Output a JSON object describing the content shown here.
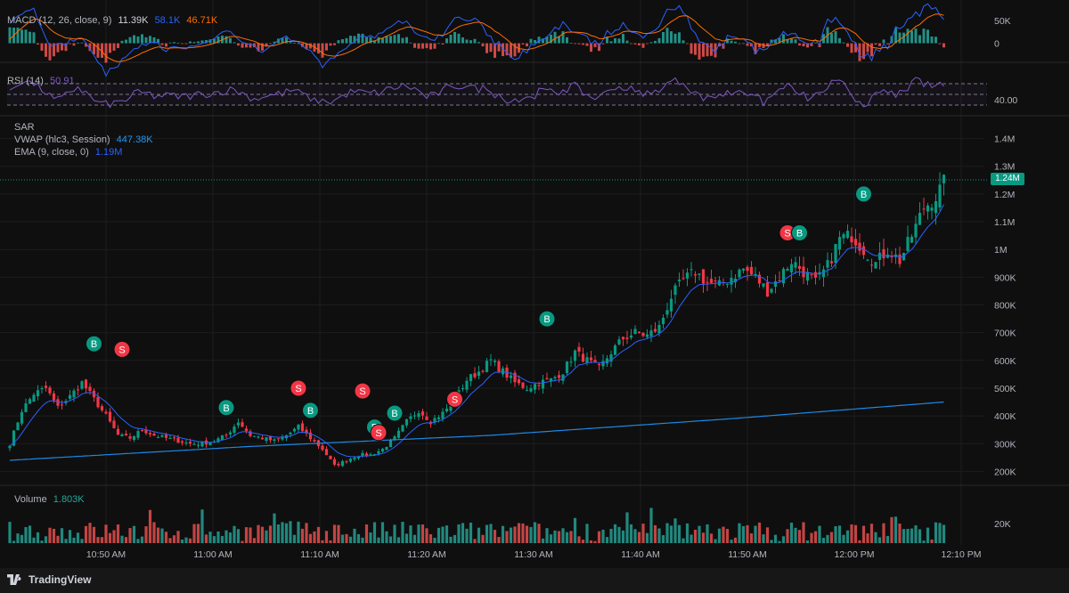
{
  "platform": {
    "brand": "TradingView",
    "logo_icon": "tradingview-logo-icon"
  },
  "colors": {
    "up": "#089981",
    "down": "#f23645",
    "ema": "#2962ff",
    "vwap": "#1e88e5",
    "rsi": "#7e57c2",
    "macd": "#2962ff",
    "signal": "#ff6d00",
    "background": "#0f0f0f"
  },
  "legends": {
    "macd": {
      "name": "MACD (12, 26, close, 9)",
      "hist": "11.39K",
      "macd": "58.1K",
      "signal": "46.71K"
    },
    "rsi": {
      "name": "RSI (14)",
      "value": "50.91"
    },
    "sar": {
      "name": "SAR"
    },
    "vwap": {
      "name": "VWAP (hlc3, Session)",
      "value": "447.38K"
    },
    "ema": {
      "name": "EMA (9, close, 0)",
      "value": "1.19M"
    },
    "volume": {
      "name": "Volume",
      "value": "1.803K"
    }
  },
  "last_price_label": "1.24M",
  "chart_data": [
    {
      "type": "candlestick",
      "pane": "price",
      "x_ticks": [
        "10:50 AM",
        "11:00 AM",
        "11:10 AM",
        "11:20 AM",
        "11:30 AM",
        "11:40 AM",
        "11:50 AM",
        "12:00 PM",
        "12:10 PM"
      ],
      "y_ticks": [
        "200K",
        "300K",
        "400K",
        "500K",
        "600K",
        "700K",
        "800K",
        "900K",
        "1M",
        "1.1M",
        "1.2M",
        "1.3M",
        "1.4M"
      ],
      "ylim": [
        150000,
        1450000
      ],
      "close_path": [
        [
          0,
          300000
        ],
        [
          3,
          420000
        ],
        [
          6,
          480000
        ],
        [
          9,
          500000
        ],
        [
          12,
          430000
        ],
        [
          15,
          470000
        ],
        [
          18,
          520000
        ],
        [
          21,
          460000
        ],
        [
          24,
          400000
        ],
        [
          27,
          330000
        ],
        [
          30,
          320000
        ],
        [
          33,
          350000
        ],
        [
          36,
          330000
        ],
        [
          39,
          320000
        ],
        [
          42,
          310000
        ],
        [
          45,
          300000
        ],
        [
          48,
          300000
        ],
        [
          51,
          310000
        ],
        [
          54,
          330000
        ],
        [
          57,
          380000
        ],
        [
          60,
          330000
        ],
        [
          63,
          320000
        ],
        [
          66,
          310000
        ],
        [
          69,
          330000
        ],
        [
          72,
          360000
        ],
        [
          75,
          320000
        ],
        [
          78,
          280000
        ],
        [
          81,
          220000
        ],
        [
          84,
          240000
        ],
        [
          87,
          260000
        ],
        [
          90,
          260000
        ],
        [
          93,
          280000
        ],
        [
          96,
          320000
        ],
        [
          99,
          380000
        ],
        [
          102,
          420000
        ],
        [
          105,
          380000
        ],
        [
          108,
          410000
        ],
        [
          111,
          460000
        ],
        [
          114,
          530000
        ],
        [
          117,
          560000
        ],
        [
          120,
          600000
        ],
        [
          123,
          560000
        ],
        [
          126,
          520000
        ],
        [
          129,
          500000
        ],
        [
          132,
          520000
        ],
        [
          135,
          530000
        ],
        [
          138,
          560000
        ],
        [
          141,
          630000
        ],
        [
          144,
          600000
        ],
        [
          147,
          570000
        ],
        [
          150,
          630000
        ],
        [
          153,
          680000
        ],
        [
          156,
          700000
        ],
        [
          159,
          690000
        ],
        [
          162,
          720000
        ],
        [
          165,
          830000
        ],
        [
          168,
          890000
        ],
        [
          171,
          920000
        ],
        [
          174,
          880000
        ],
        [
          177,
          870000
        ],
        [
          180,
          900000
        ],
        [
          183,
          930000
        ],
        [
          186,
          900000
        ],
        [
          189,
          850000
        ],
        [
          192,
          900000
        ],
        [
          195,
          960000
        ],
        [
          198,
          920000
        ],
        [
          201,
          880000
        ],
        [
          204,
          940000
        ],
        [
          207,
          1040000
        ],
        [
          210,
          1050000
        ],
        [
          213,
          1000000
        ],
        [
          216,
          950000
        ],
        [
          219,
          1000000
        ],
        [
          222,
          960000
        ],
        [
          225,
          1050000
        ],
        [
          228,
          1150000
        ],
        [
          231,
          1190000
        ],
        [
          233,
          1240000
        ]
      ],
      "vwap": [
        [
          0,
          240000
        ],
        [
          60,
          290000
        ],
        [
          120,
          330000
        ],
        [
          180,
          390000
        ],
        [
          233,
          450000
        ]
      ],
      "signals": [
        {
          "side": "B",
          "bar": 21,
          "price": 660000
        },
        {
          "side": "S",
          "bar": 28,
          "price": 640000
        },
        {
          "side": "B",
          "bar": 54,
          "price": 430000
        },
        {
          "side": "S",
          "bar": 72,
          "price": 500000
        },
        {
          "side": "B",
          "bar": 75,
          "price": 420000
        },
        {
          "side": "S",
          "bar": 88,
          "price": 490000
        },
        {
          "side": "B",
          "bar": 91,
          "price": 360000
        },
        {
          "side": "S",
          "bar": 92,
          "price": 340000
        },
        {
          "side": "B",
          "bar": 96,
          "price": 410000
        },
        {
          "side": "S",
          "bar": 111,
          "price": 460000
        },
        {
          "side": "B",
          "bar": 134,
          "price": 750000
        },
        {
          "side": "S",
          "bar": 194,
          "price": 1060000
        },
        {
          "side": "B",
          "bar": 197,
          "price": 1060000
        },
        {
          "side": "B",
          "bar": 213,
          "price": 1200000
        }
      ]
    },
    {
      "type": "macd",
      "pane": "macd",
      "y_ticks": [
        "50K",
        "0"
      ],
      "ylim": [
        -30000,
        75000
      ]
    },
    {
      "type": "rsi",
      "pane": "rsi",
      "y_ticks": [
        "40.00"
      ],
      "ylim": [
        20,
        90
      ],
      "bands": [
        30,
        50,
        70
      ]
    },
    {
      "type": "bar",
      "pane": "volume",
      "y_ticks": [
        "20K"
      ],
      "ylim": [
        0,
        45000
      ]
    }
  ]
}
